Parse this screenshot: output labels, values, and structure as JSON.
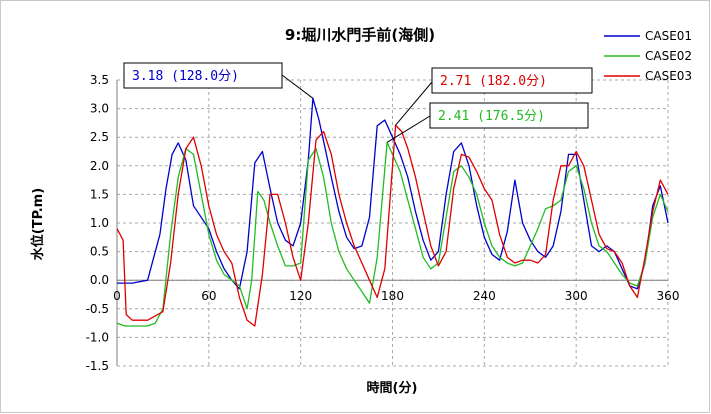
{
  "chart_data": {
    "type": "line",
    "title": "9:堀川水門手前(海側)",
    "xlabel": "時間(分)",
    "ylabel": "水位(TP.m)",
    "xlim": [
      0,
      360
    ],
    "ylim": [
      -1.5,
      3.5
    ],
    "xticks": [
      0,
      60,
      120,
      180,
      240,
      300,
      360
    ],
    "yticks": [
      -1.5,
      -1.0,
      -0.5,
      0.0,
      0.5,
      1.0,
      1.5,
      2.0,
      2.5,
      3.0,
      3.5
    ],
    "xtick_labels": [
      "0",
      "60",
      "120",
      "180",
      "240",
      "300",
      "360"
    ],
    "ytick_labels": [
      "-1.5",
      "-1.0",
      "-0.5",
      "0.0",
      "0.5",
      "1.0",
      "1.5",
      "2.0",
      "2.5",
      "3.0",
      "3.5"
    ],
    "grid": {
      "x": true,
      "y": true,
      "style": "dashed"
    },
    "legend_position": "top-right",
    "series": [
      {
        "name": "CASE01",
        "color": "#0000cc",
        "x": [
          0,
          10,
          20,
          28,
          32,
          36,
          40,
          45,
          50,
          55,
          60,
          65,
          70,
          75,
          80,
          85,
          90,
          95,
          100,
          105,
          110,
          115,
          120,
          125,
          128,
          132,
          136,
          140,
          145,
          150,
          155,
          160,
          165,
          170,
          175,
          180,
          185,
          190,
          195,
          200,
          205,
          210,
          215,
          220,
          225,
          230,
          235,
          240,
          245,
          250,
          255,
          260,
          265,
          270,
          275,
          280,
          285,
          290,
          295,
          300,
          305,
          310,
          315,
          320,
          325,
          330,
          335,
          340,
          345,
          350,
          355,
          360
        ],
        "y": [
          -0.05,
          -0.05,
          0.0,
          0.8,
          1.6,
          2.2,
          2.4,
          2.1,
          1.3,
          1.1,
          0.9,
          0.5,
          0.2,
          0.0,
          -0.15,
          0.5,
          2.05,
          2.25,
          1.6,
          1.0,
          0.7,
          0.6,
          1.0,
          2.1,
          3.18,
          2.8,
          2.3,
          1.8,
          1.2,
          0.75,
          0.55,
          0.6,
          1.1,
          2.7,
          2.8,
          2.5,
          2.2,
          1.8,
          1.2,
          0.7,
          0.35,
          0.5,
          1.5,
          2.25,
          2.4,
          2.0,
          1.3,
          0.75,
          0.45,
          0.35,
          0.85,
          1.75,
          1.0,
          0.7,
          0.5,
          0.4,
          0.6,
          1.2,
          2.2,
          2.2,
          1.4,
          0.6,
          0.5,
          0.6,
          0.5,
          0.2,
          -0.1,
          -0.15,
          0.3,
          1.3,
          1.65,
          1.0
        ]
      },
      {
        "name": "CASE02",
        "color": "#22bb22",
        "x": [
          0,
          5,
          10,
          20,
          25,
          30,
          35,
          40,
          45,
          50,
          55,
          60,
          65,
          70,
          75,
          80,
          85,
          88,
          92,
          96,
          100,
          105,
          110,
          115,
          120,
          125,
          130,
          135,
          140,
          145,
          150,
          155,
          160,
          165,
          170,
          176.5,
          180,
          185,
          190,
          195,
          200,
          205,
          210,
          215,
          220,
          225,
          230,
          235,
          240,
          245,
          250,
          255,
          260,
          265,
          270,
          275,
          280,
          285,
          290,
          295,
          300,
          305,
          310,
          315,
          320,
          325,
          330,
          335,
          340,
          345,
          350,
          355,
          360
        ],
        "y": [
          -0.75,
          -0.8,
          -0.8,
          -0.8,
          -0.75,
          -0.5,
          0.8,
          1.8,
          2.3,
          2.2,
          1.5,
          0.8,
          0.35,
          0.1,
          0.0,
          -0.1,
          -0.5,
          0.0,
          1.55,
          1.4,
          1.0,
          0.6,
          0.25,
          0.25,
          0.3,
          2.1,
          2.3,
          1.8,
          1.0,
          0.5,
          0.2,
          0.0,
          -0.2,
          -0.4,
          0.4,
          2.41,
          2.2,
          1.9,
          1.4,
          0.9,
          0.4,
          0.2,
          0.3,
          1.1,
          1.9,
          2.0,
          1.8,
          1.5,
          1.0,
          0.6,
          0.4,
          0.3,
          0.25,
          0.3,
          0.6,
          0.9,
          1.25,
          1.3,
          1.4,
          1.9,
          2.0,
          1.6,
          1.0,
          0.6,
          0.5,
          0.3,
          0.1,
          -0.05,
          -0.1,
          0.3,
          1.1,
          1.5,
          1.2
        ]
      },
      {
        "name": "CASE03",
        "color": "#dd0000",
        "x": [
          0,
          2,
          4,
          6,
          10,
          20,
          30,
          35,
          40,
          45,
          50,
          55,
          60,
          65,
          70,
          75,
          80,
          85,
          90,
          95,
          100,
          105,
          110,
          115,
          120,
          125,
          130,
          135,
          140,
          145,
          150,
          155,
          160,
          165,
          170,
          175,
          182,
          186,
          190,
          195,
          200,
          205,
          210,
          215,
          220,
          225,
          230,
          235,
          240,
          245,
          250,
          255,
          260,
          265,
          270,
          275,
          280,
          285,
          290,
          295,
          300,
          305,
          310,
          315,
          320,
          325,
          330,
          335,
          340,
          345,
          350,
          355,
          360
        ],
        "y": [
          0.9,
          0.8,
          0.7,
          -0.6,
          -0.7,
          -0.7,
          -0.55,
          0.3,
          1.5,
          2.3,
          2.5,
          2.0,
          1.3,
          0.8,
          0.5,
          0.3,
          -0.3,
          -0.7,
          -0.8,
          0.1,
          1.5,
          1.5,
          1.0,
          0.4,
          0.0,
          1.0,
          2.45,
          2.6,
          2.2,
          1.5,
          1.0,
          0.6,
          0.3,
          0.0,
          -0.3,
          0.2,
          2.71,
          2.6,
          2.3,
          1.8,
          1.2,
          0.6,
          0.25,
          0.5,
          1.6,
          2.2,
          2.15,
          1.9,
          1.6,
          1.4,
          0.8,
          0.4,
          0.3,
          0.35,
          0.35,
          0.3,
          0.45,
          1.4,
          2.0,
          2.0,
          2.25,
          2.0,
          1.4,
          0.8,
          0.55,
          0.5,
          0.3,
          -0.1,
          -0.3,
          0.4,
          1.2,
          1.75,
          1.5
        ]
      }
    ],
    "annotations": [
      {
        "text": "3.18 (128.0分)",
        "series": "CASE01",
        "x": 128.0,
        "y": 3.18,
        "color": "#0000cc"
      },
      {
        "text": "2.71 (182.0分)",
        "series": "CASE03",
        "x": 182.0,
        "y": 2.71,
        "color": "#dd0000"
      },
      {
        "text": "2.41 (176.5分)",
        "series": "CASE02",
        "x": 176.5,
        "y": 2.41,
        "color": "#22bb22"
      }
    ]
  }
}
